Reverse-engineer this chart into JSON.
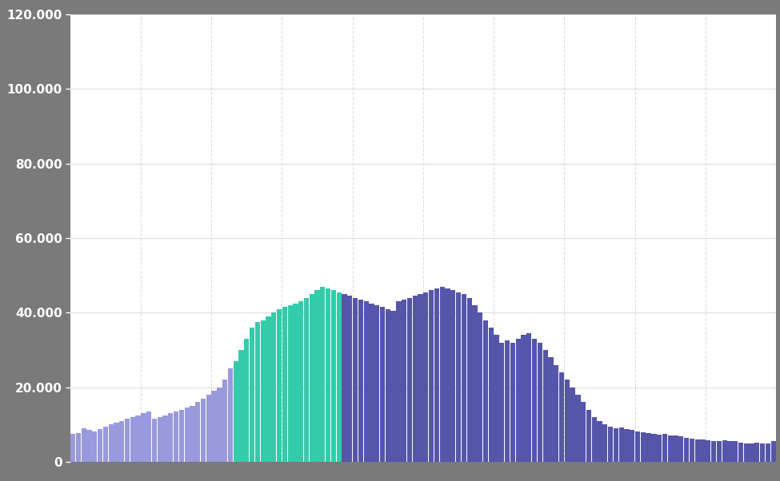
{
  "background_color": "#7a7a7a",
  "plot_bg_color": "#ffffff",
  "bar_color_light": "#9999dd",
  "bar_color_teal": "#33ccaa",
  "bar_color_dark": "#5555aa",
  "grid_color": "#dddddd",
  "ylim": [
    0,
    120000
  ],
  "yticks": [
    0,
    20000,
    40000,
    60000,
    80000,
    100000,
    120000
  ],
  "ytick_labels": [
    "0",
    "20.000",
    "40.000",
    "60.000",
    "80.000",
    "100.000",
    "120.000"
  ],
  "text_color": "#ffffff",
  "values": [
    7500,
    7800,
    9000,
    8500,
    8200,
    8800,
    9500,
    10000,
    10500,
    11000,
    11500,
    12000,
    12500,
    13000,
    13500,
    11500,
    12000,
    12500,
    13000,
    13500,
    14000,
    14500,
    15000,
    16000,
    17000,
    18000,
    19000,
    20000,
    22000,
    25000,
    27000,
    30000,
    33000,
    36000,
    37500,
    38000,
    39000,
    40000,
    41000,
    41500,
    42000,
    42500,
    43000,
    44000,
    45000,
    46000,
    47000,
    46500,
    46000,
    45500,
    45000,
    44500,
    44000,
    43500,
    43000,
    42500,
    42000,
    41500,
    41000,
    40500,
    43000,
    43500,
    44000,
    44500,
    45000,
    45500,
    46000,
    46500,
    47000,
    46500,
    46000,
    45500,
    45000,
    44000,
    42000,
    40000,
    38000,
    36000,
    34000,
    32000,
    32500,
    32000,
    33000,
    34000,
    34500,
    33000,
    32000,
    30000,
    28000,
    26000,
    24000,
    22000,
    20000,
    18000,
    16000,
    14000,
    12000,
    11000,
    10000,
    9500,
    9000,
    9200,
    8800,
    8500,
    8200,
    8000,
    7800,
    7500,
    7200,
    7500,
    7000,
    7000,
    6800,
    6500,
    6200,
    6000,
    6000,
    5800,
    5500,
    5500,
    5800,
    5500,
    5500,
    5200,
    5000,
    5000,
    5200,
    5000,
    5000,
    5500
  ],
  "color_breaks": [
    30,
    50
  ],
  "n_vlines": 9
}
